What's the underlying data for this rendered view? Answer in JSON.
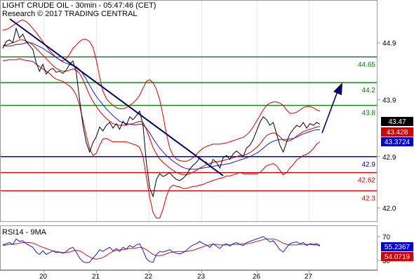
{
  "header": {
    "title": "LIGHT CRUDE OIL - 30min - 05:47:46 (CET)",
    "subtitle": "Research © 2017 TRADING CENTRAL"
  },
  "rsi_label": "RSI14 - 9MA",
  "colors": {
    "price": "#000000",
    "bollinger": "#cc0000",
    "moving_average": "#1a1acc",
    "trendline": "#000066",
    "resistance": "#008000",
    "pivot": "#0000cc",
    "support": "#cc0000",
    "rsi": "#1a1acc",
    "rsi_ma": "#b02020",
    "last_tag": "#000000",
    "tag_red": "#cc0000",
    "tag_blue": "#0000cc",
    "arrow": "#000066"
  },
  "chart_data": [
    {
      "type": "line",
      "title": "LIGHT CRUDE OIL - 30min - 05:47:46 (CET)",
      "x_ticks": [
        "20",
        "21",
        "22",
        "23",
        "26",
        "27"
      ],
      "ylim": [
        41.85,
        45.2
      ],
      "y_ticks": [
        "44.9",
        "43.9",
        "42.9",
        "42.0"
      ],
      "levels": {
        "resistance": [
          {
            "value": 44.65,
            "label": "44.65"
          },
          {
            "value": 44.2,
            "label": "44.2"
          },
          {
            "value": 43.8,
            "label": "43.8"
          }
        ],
        "pivot": [
          {
            "value": 42.9,
            "label": "42.9"
          }
        ],
        "support": [
          {
            "value": 42.62,
            "label": "42.62"
          },
          {
            "value": 42.3,
            "label": "42.3"
          }
        ]
      },
      "price_tags": {
        "last": "43.47",
        "red": "43.428",
        "blue": "43.3724"
      },
      "series": [
        {
          "values": [
            44.8,
            44.92,
            44.95,
            44.9,
            45.15,
            44.98,
            45.05,
            44.92,
            44.85,
            44.78,
            44.55,
            44.4,
            44.52,
            44.35,
            44.42,
            44.45,
            44.38,
            44.4,
            44.36,
            44.42,
            44.52,
            44.58,
            44.38,
            43.9,
            43.45,
            43.15,
            42.98,
            43.15,
            43.25,
            43.42,
            43.35,
            43.45,
            43.5,
            43.4,
            43.48,
            43.38,
            43.52,
            43.45,
            43.6,
            43.55,
            43.62,
            43.7,
            43.45,
            42.8,
            42.35,
            42.2,
            42.5,
            42.6,
            42.55,
            42.58,
            42.62,
            42.55,
            42.5,
            42.48,
            42.52,
            42.58,
            42.68,
            42.75,
            42.8,
            42.88,
            42.82,
            42.8,
            42.72,
            42.85,
            42.8,
            42.7,
            42.88,
            42.92,
            42.85,
            42.95,
            43.0,
            42.95,
            42.9,
            43.05,
            43.1,
            43.2,
            43.35,
            43.5,
            43.6,
            43.55,
            43.45,
            43.5,
            43.3,
            43.1,
            42.98,
            43.15,
            43.3,
            43.38,
            43.45,
            43.42,
            43.5,
            43.4,
            43.48,
            43.45,
            43.5,
            43.47
          ]
        },
        {
          "values": [
            44.85,
            44.86,
            44.88,
            44.9,
            44.92,
            44.95,
            44.95,
            44.93,
            44.9,
            44.86,
            44.8,
            44.74,
            44.68,
            44.62,
            44.56,
            44.5,
            44.45,
            44.42,
            44.4,
            44.4,
            44.42,
            44.44,
            44.42,
            44.36,
            44.25,
            44.12,
            43.98,
            43.87,
            43.78,
            43.7,
            43.63,
            43.57,
            43.52,
            43.48,
            43.46,
            43.45,
            43.45,
            43.46,
            43.47,
            43.48,
            43.5,
            43.52,
            43.5,
            43.38,
            43.22,
            43.06,
            42.95,
            42.86,
            42.8,
            42.75,
            42.7,
            42.66,
            42.62,
            42.6,
            42.58,
            42.58,
            42.6,
            42.63,
            42.66,
            42.7,
            42.73,
            42.76,
            42.78,
            42.8,
            42.81,
            42.82,
            42.83,
            42.85,
            42.86,
            42.88,
            42.9,
            42.92,
            42.92,
            42.94,
            42.97,
            43.01,
            43.06,
            43.12,
            43.2,
            43.27,
            43.3,
            43.32,
            43.3,
            43.25,
            43.19,
            43.17,
            43.18,
            43.21,
            43.26,
            43.3,
            43.34,
            43.36,
            43.38,
            43.4,
            43.42,
            43.43
          ]
        },
        {
          "values": [
            45.12,
            45.13,
            45.16,
            45.2,
            45.24,
            45.28,
            45.3,
            45.27,
            45.22,
            45.15,
            45.08,
            45.0,
            44.92,
            44.84,
            44.76,
            44.7,
            44.64,
            44.6,
            44.58,
            44.62,
            44.7,
            44.8,
            44.86,
            44.92,
            44.96,
            44.96,
            44.92,
            44.82,
            44.6,
            44.3,
            44.05,
            43.92,
            43.85,
            43.8,
            43.76,
            43.74,
            43.74,
            43.76,
            43.8,
            43.84,
            43.9,
            43.98,
            44.1,
            44.22,
            44.25,
            44.2,
            44.08,
            43.9,
            43.62,
            43.3,
            43.05,
            42.92,
            42.86,
            42.83,
            42.82,
            42.82,
            42.84,
            42.88,
            42.94,
            43.0,
            43.05,
            43.08,
            43.1,
            43.12,
            43.12,
            43.12,
            43.13,
            43.14,
            43.16,
            43.18,
            43.2,
            43.22,
            43.24,
            43.28,
            43.34,
            43.42,
            43.52,
            43.62,
            43.72,
            43.8,
            43.84,
            43.86,
            43.86,
            43.84,
            43.8,
            43.72,
            43.66,
            43.66,
            43.68,
            43.72,
            43.76,
            43.78,
            43.78,
            43.76,
            43.72,
            43.7
          ]
        },
        {
          "values": [
            44.58,
            44.59,
            44.6,
            44.6,
            44.6,
            44.62,
            44.6,
            44.59,
            44.58,
            44.57,
            44.52,
            44.48,
            44.44,
            44.4,
            44.36,
            44.3,
            44.26,
            44.24,
            44.22,
            44.18,
            44.14,
            44.08,
            43.98,
            43.8,
            43.54,
            43.28,
            43.04,
            42.92,
            42.96,
            43.1,
            43.21,
            43.22,
            43.19,
            43.16,
            43.16,
            43.16,
            43.16,
            43.16,
            43.14,
            43.12,
            43.1,
            43.06,
            42.9,
            42.54,
            42.19,
            41.92,
            41.82,
            41.82,
            41.98,
            42.2,
            42.35,
            42.4,
            42.38,
            42.37,
            42.34,
            42.34,
            42.36,
            42.38,
            42.38,
            42.4,
            42.41,
            42.44,
            42.46,
            42.48,
            42.5,
            42.52,
            42.53,
            42.56,
            42.56,
            42.58,
            42.6,
            42.62,
            42.6,
            42.6,
            42.6,
            42.6,
            42.6,
            42.62,
            42.68,
            42.74,
            42.76,
            42.78,
            42.74,
            42.66,
            42.58,
            42.62,
            42.7,
            42.76,
            42.84,
            42.88,
            42.92,
            42.94,
            42.98,
            43.04,
            43.12,
            43.16
          ]
        },
        {
          "values": [
            44.85,
            44.84,
            44.84,
            44.85,
            44.87,
            44.87,
            44.88,
            44.9,
            44.9,
            44.89,
            44.86,
            44.83,
            44.8,
            44.76,
            44.72,
            44.68,
            44.64,
            44.6,
            44.56,
            44.54,
            44.52,
            44.5,
            44.48,
            44.43,
            44.35,
            44.26,
            44.15,
            44.05,
            43.96,
            43.88,
            43.81,
            43.74,
            43.68,
            43.62,
            43.57,
            43.52,
            43.5,
            43.48,
            43.47,
            43.46,
            43.46,
            43.47,
            43.46,
            43.4,
            43.32,
            43.22,
            43.13,
            43.05,
            42.98,
            42.92,
            42.87,
            42.82,
            42.78,
            42.74,
            42.71,
            42.69,
            42.68,
            42.68,
            42.68,
            42.69,
            42.7,
            42.71,
            42.72,
            42.73,
            42.74,
            42.75,
            42.76,
            42.77,
            42.78,
            42.8,
            42.82,
            42.84,
            42.86,
            42.88,
            42.9,
            42.93,
            42.96,
            43.0,
            43.05,
            43.1,
            43.14,
            43.17,
            43.19,
            43.2,
            43.2,
            43.2,
            43.21,
            43.22,
            43.24,
            43.27,
            43.3,
            43.32,
            43.34,
            43.36,
            43.37,
            43.37
          ]
        }
      ]
    },
    {
      "type": "line",
      "title": "RSI14 - 9MA",
      "ylim": [
        25,
        75
      ],
      "y_ticks": [
        "70",
        "30"
      ],
      "x_ticks": [
        "20",
        "21",
        "22",
        "23",
        "26",
        "27"
      ],
      "value_tags": {
        "blue": "55.2367",
        "red": "54.0719"
      },
      "series": [
        {
          "values": [
            56,
            58,
            60,
            57,
            66,
            62,
            63,
            58,
            55,
            52,
            44,
            40,
            46,
            40,
            43,
            46,
            43,
            44,
            42,
            45,
            50,
            52,
            44,
            34,
            28,
            26,
            27,
            34,
            40,
            48,
            45,
            49,
            52,
            46,
            50,
            45,
            52,
            49,
            55,
            52,
            56,
            58,
            47,
            33,
            28,
            27,
            40,
            45,
            44,
            46,
            48,
            44,
            42,
            41,
            43,
            47,
            52,
            56,
            58,
            62,
            58,
            56,
            52,
            58,
            54,
            50,
            56,
            58,
            54,
            58,
            60,
            57,
            55,
            60,
            62,
            64,
            66,
            68,
            70,
            66,
            61,
            63,
            56,
            48,
            44,
            52,
            58,
            60,
            61,
            58,
            60,
            55,
            58,
            57,
            58,
            55.24
          ]
        },
        {
          "values": [
            55,
            56,
            57,
            57,
            58,
            59,
            60,
            60,
            60,
            59,
            57,
            54,
            52,
            50,
            48,
            46,
            45,
            44,
            43,
            43,
            44,
            46,
            47,
            46,
            43,
            39,
            36,
            33,
            32,
            33,
            35,
            38,
            42,
            45,
            47,
            48,
            48,
            49,
            50,
            50,
            51,
            52,
            51,
            48,
            44,
            40,
            38,
            38,
            39,
            41,
            43,
            44,
            45,
            45,
            45,
            45,
            46,
            47,
            49,
            51,
            53,
            55,
            56,
            57,
            57,
            56,
            56,
            56,
            56,
            57,
            57,
            57,
            58,
            58,
            59,
            60,
            62,
            63,
            65,
            66,
            66,
            66,
            65,
            62,
            59,
            57,
            56,
            56,
            56,
            57,
            57,
            57,
            57,
            56,
            56,
            54.07
          ]
        }
      ]
    }
  ]
}
